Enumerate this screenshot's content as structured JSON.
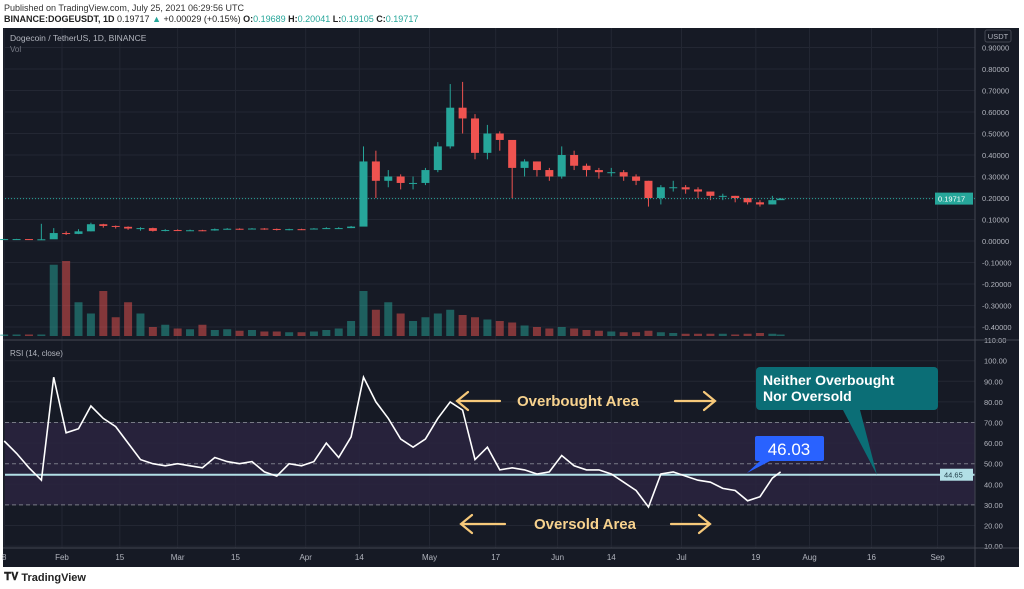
{
  "header": {
    "published": "Published on TradingView.com, July 25, 2021 06:29:56 UTC",
    "symbol": "BINANCE:DOGEUSDT, 1D",
    "last": "0.19717",
    "change": "+0.00029 (+0.15%)",
    "o_label": "O:",
    "o": "0.19689",
    "h_label": "H:",
    "h": "0.20041",
    "l_label": "L:",
    "l": "0.19105",
    "c_label": "C:",
    "c": "0.19717"
  },
  "footer": {
    "logo": "TradingView"
  },
  "colors": {
    "up": "#26a69a",
    "down": "#ef5350",
    "bg": "#161a25",
    "rsi": "#ffffff",
    "band": "#2a2540",
    "annotation": "#f7c97a",
    "callout": "#0b6e76",
    "value_label": "#2962ff",
    "hline": "#b2dfe6"
  },
  "chart_data": [
    {
      "type": "candlestick",
      "title": "Dogecoin / TetherUS, 1D, BINANCE",
      "volume_label": "Vol",
      "currency": "USDT",
      "ylim": [
        -0.45,
        0.95
      ],
      "y_ticks": [
        "0.90000",
        "0.80000",
        "0.70000",
        "0.60000",
        "0.50000",
        "0.40000",
        "0.30000",
        "0.20000",
        "0.10000",
        "0.00000",
        "-0.10000",
        "-0.20000",
        "-0.30000",
        "-0.40000"
      ],
      "last_price_label": "0.19717",
      "last_price": 0.19717,
      "grid": true,
      "x_ticks": [
        {
          "label": "8",
          "date": "2021-01-18"
        },
        {
          "label": "Feb",
          "date": "2021-02-01"
        },
        {
          "label": "15",
          "date": "2021-02-15"
        },
        {
          "label": "Mar",
          "date": "2021-03-01"
        },
        {
          "label": "15",
          "date": "2021-03-15"
        },
        {
          "label": "Apr",
          "date": "2021-04-01"
        },
        {
          "label": "14",
          "date": "2021-04-14"
        },
        {
          "label": "May",
          "date": "2021-05-01"
        },
        {
          "label": "17",
          "date": "2021-05-17"
        },
        {
          "label": "Jun",
          "date": "2021-06-01"
        },
        {
          "label": "14",
          "date": "2021-06-14"
        },
        {
          "label": "Jul",
          "date": "2021-07-01"
        },
        {
          "label": "19",
          "date": "2021-07-19"
        },
        {
          "label": "Aug",
          "date": "2021-08-01"
        },
        {
          "label": "16",
          "date": "2021-08-16"
        },
        {
          "label": "Sep",
          "date": "2021-09-01"
        }
      ],
      "dates": [
        "2021-01-18",
        "2021-01-21",
        "2021-01-24",
        "2021-01-27",
        "2021-01-30",
        "2021-02-02",
        "2021-02-05",
        "2021-02-08",
        "2021-02-11",
        "2021-02-14",
        "2021-02-17",
        "2021-02-20",
        "2021-02-23",
        "2021-02-26",
        "2021-03-01",
        "2021-03-04",
        "2021-03-07",
        "2021-03-10",
        "2021-03-13",
        "2021-03-16",
        "2021-03-19",
        "2021-03-22",
        "2021-03-25",
        "2021-03-28",
        "2021-03-31",
        "2021-04-03",
        "2021-04-06",
        "2021-04-09",
        "2021-04-12",
        "2021-04-15",
        "2021-04-18",
        "2021-04-21",
        "2021-04-24",
        "2021-04-27",
        "2021-04-30",
        "2021-05-03",
        "2021-05-06",
        "2021-05-09",
        "2021-05-12",
        "2021-05-15",
        "2021-05-18",
        "2021-05-21",
        "2021-05-24",
        "2021-05-27",
        "2021-05-30",
        "2021-06-02",
        "2021-06-05",
        "2021-06-08",
        "2021-06-11",
        "2021-06-14",
        "2021-06-17",
        "2021-06-20",
        "2021-06-23",
        "2021-06-26",
        "2021-06-29",
        "2021-07-02",
        "2021-07-05",
        "2021-07-08",
        "2021-07-11",
        "2021-07-14",
        "2021-07-17",
        "2021-07-20",
        "2021-07-23",
        "2021-07-25"
      ],
      "close": [
        0.009,
        0.009,
        0.008,
        0.008,
        0.037,
        0.033,
        0.045,
        0.078,
        0.07,
        0.066,
        0.058,
        0.06,
        0.047,
        0.051,
        0.05,
        0.05,
        0.049,
        0.055,
        0.057,
        0.055,
        0.058,
        0.056,
        0.052,
        0.055,
        0.054,
        0.058,
        0.06,
        0.06,
        0.067,
        0.37,
        0.28,
        0.3,
        0.27,
        0.27,
        0.33,
        0.44,
        0.62,
        0.57,
        0.41,
        0.5,
        0.47,
        0.34,
        0.37,
        0.33,
        0.3,
        0.4,
        0.35,
        0.33,
        0.32,
        0.32,
        0.3,
        0.28,
        0.2,
        0.25,
        0.25,
        0.24,
        0.23,
        0.21,
        0.21,
        0.2,
        0.18,
        0.17,
        0.19,
        0.197
      ],
      "high": [
        0.01,
        0.01,
        0.009,
        0.08,
        0.06,
        0.045,
        0.055,
        0.085,
        0.08,
        0.072,
        0.068,
        0.064,
        0.062,
        0.055,
        0.054,
        0.053,
        0.052,
        0.058,
        0.06,
        0.059,
        0.06,
        0.06,
        0.058,
        0.057,
        0.057,
        0.06,
        0.064,
        0.064,
        0.07,
        0.44,
        0.42,
        0.33,
        0.31,
        0.3,
        0.34,
        0.46,
        0.73,
        0.74,
        0.59,
        0.54,
        0.51,
        0.46,
        0.38,
        0.37,
        0.34,
        0.44,
        0.42,
        0.36,
        0.34,
        0.34,
        0.33,
        0.31,
        0.28,
        0.26,
        0.28,
        0.26,
        0.25,
        0.23,
        0.22,
        0.21,
        0.2,
        0.19,
        0.21,
        0.2
      ],
      "low": [
        0.008,
        0.008,
        0.007,
        0.007,
        0.03,
        0.028,
        0.032,
        0.045,
        0.062,
        0.058,
        0.052,
        0.048,
        0.044,
        0.045,
        0.047,
        0.047,
        0.046,
        0.048,
        0.053,
        0.052,
        0.054,
        0.052,
        0.049,
        0.05,
        0.051,
        0.054,
        0.057,
        0.057,
        0.06,
        0.1,
        0.2,
        0.25,
        0.24,
        0.24,
        0.26,
        0.32,
        0.43,
        0.5,
        0.38,
        0.38,
        0.42,
        0.2,
        0.3,
        0.3,
        0.28,
        0.29,
        0.33,
        0.3,
        0.29,
        0.3,
        0.28,
        0.26,
        0.16,
        0.17,
        0.23,
        0.22,
        0.2,
        0.19,
        0.19,
        0.18,
        0.17,
        0.16,
        0.17,
        0.191
      ],
      "volume": [
        2,
        2,
        2,
        2,
        95,
        100,
        45,
        30,
        60,
        25,
        45,
        30,
        12,
        15,
        10,
        9,
        15,
        8,
        9,
        7,
        8,
        6,
        6,
        5,
        5,
        6,
        8,
        10,
        20,
        60,
        35,
        45,
        30,
        20,
        25,
        30,
        35,
        28,
        25,
        22,
        20,
        18,
        14,
        12,
        10,
        12,
        10,
        8,
        7,
        6,
        5,
        5,
        7,
        5,
        4,
        3,
        3,
        3,
        3,
        2,
        3,
        4,
        3,
        2
      ]
    },
    {
      "type": "line",
      "title": "RSI (14, close)",
      "ylim": [
        5,
        112
      ],
      "y_ticks": [
        "110.00",
        "100.00",
        "90.00",
        "80.00",
        "70.00",
        "60.00",
        "50.00",
        "40.00",
        "30.00",
        "20.00",
        "10.00"
      ],
      "bands": {
        "upper": 70,
        "middle": 50,
        "lower": 30
      },
      "hline_value": 44.65,
      "hline_label": "44.65",
      "values": [
        61,
        55,
        48,
        42,
        92,
        65,
        67,
        78,
        72,
        68,
        60,
        52,
        50,
        49,
        50,
        49,
        48,
        53,
        51,
        50,
        51,
        46,
        44,
        50,
        49,
        51,
        60,
        53,
        63,
        92,
        80,
        72,
        62,
        58,
        62,
        72,
        80,
        76,
        52,
        58,
        47,
        48,
        47,
        45,
        46,
        54,
        49,
        47,
        47,
        45,
        41,
        37,
        29,
        45,
        46,
        44,
        42,
        41,
        38,
        37,
        32,
        34,
        43,
        46
      ],
      "annotations": {
        "overbought": "Overbought Area",
        "oversold": "Oversold Area",
        "callout": [
          "Neither Overbought",
          "Nor Oversold"
        ],
        "value_label": "46.03"
      }
    }
  ]
}
